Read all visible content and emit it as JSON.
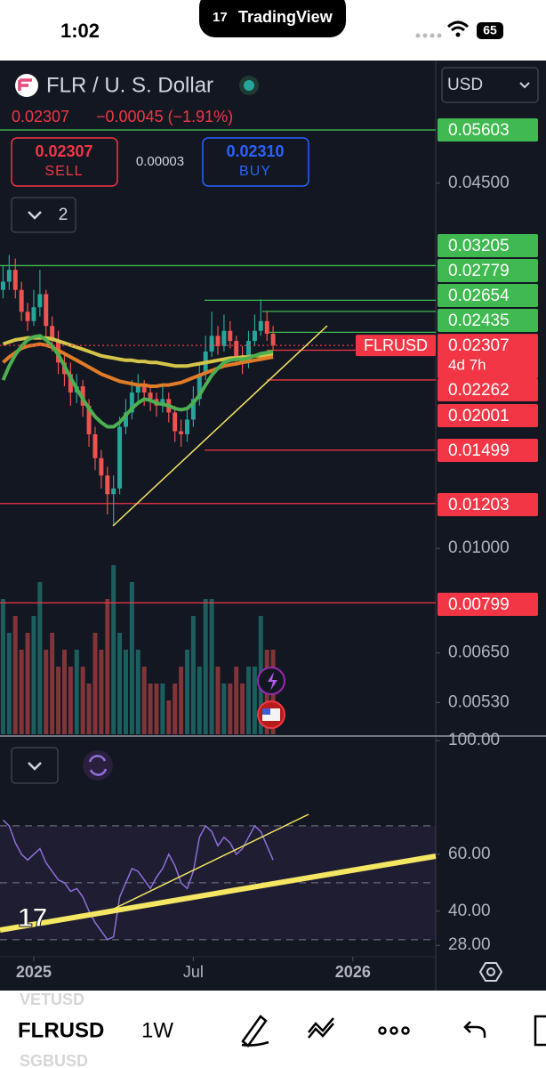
{
  "status_bar": {
    "time": "1:02",
    "app": "TradingView",
    "battery": "65"
  },
  "header": {
    "symbol": "FLR / U. S. Dollar",
    "currency": "USD",
    "quote": "0.02307",
    "change": "−0.00045 (−1.91%)",
    "sell_price": "0.02307",
    "sell_label": "SELL",
    "spread": "0.00003",
    "buy_price": "0.02310",
    "buy_label": "BUY",
    "indicator_count": "2"
  },
  "chart_data": [
    {
      "type": "candlestick",
      "log_scale": true,
      "up_color": "#26a69a",
      "down_color": "#ef5350",
      "xlim": [
        -0.5,
        70.5
      ],
      "xticks": [
        {
          "value": 5,
          "label": "2025"
        },
        {
          "value": 31,
          "label": "Jul"
        },
        {
          "value": 57,
          "label": "2026"
        }
      ],
      "ylim": [
        0.00465,
        0.0746
      ],
      "yticks": [
        {
          "value": 0.045,
          "label": "0.04500"
        },
        {
          "value": 0.01,
          "label": "0.01000"
        },
        {
          "value": 0.0065,
          "label": "0.00650"
        },
        {
          "value": 0.0053,
          "label": "0.00530"
        }
      ],
      "candles": [
        [
          0.029,
          0.032,
          0.028,
          0.03
        ],
        [
          0.03,
          0.0335,
          0.029,
          0.0315
        ],
        [
          0.0315,
          0.033,
          0.028,
          0.029
        ],
        [
          0.029,
          0.03,
          0.0255,
          0.0265
        ],
        [
          0.0265,
          0.0275,
          0.0245,
          0.0255
        ],
        [
          0.0255,
          0.029,
          0.025,
          0.027
        ],
        [
          0.027,
          0.0315,
          0.026,
          0.0285
        ],
        [
          0.0285,
          0.029,
          0.024,
          0.025
        ],
        [
          0.025,
          0.026,
          0.0225,
          0.0235
        ],
        [
          0.0235,
          0.0245,
          0.0205,
          0.0215
        ],
        [
          0.0215,
          0.0225,
          0.0195,
          0.0205
        ],
        [
          0.0205,
          0.0215,
          0.018,
          0.019
        ],
        [
          0.019,
          0.0205,
          0.0182,
          0.0195
        ],
        [
          0.0195,
          0.02,
          0.0172,
          0.018
        ],
        [
          0.018,
          0.0185,
          0.0152,
          0.016
        ],
        [
          0.016,
          0.0165,
          0.0138,
          0.0145
        ],
        [
          0.0145,
          0.015,
          0.0128,
          0.0135
        ],
        [
          0.0135,
          0.014,
          0.0115,
          0.0125
        ],
        [
          0.0125,
          0.0135,
          0.011,
          0.0128
        ],
        [
          0.0128,
          0.0172,
          0.0125,
          0.0165
        ],
        [
          0.0165,
          0.0185,
          0.016,
          0.0175
        ],
        [
          0.0175,
          0.02,
          0.017,
          0.019
        ],
        [
          0.019,
          0.0205,
          0.0182,
          0.0195
        ],
        [
          0.0195,
          0.02,
          0.018,
          0.019
        ],
        [
          0.019,
          0.0195,
          0.0176,
          0.0185
        ],
        [
          0.0185,
          0.019,
          0.0172,
          0.018
        ],
        [
          0.018,
          0.0195,
          0.0175,
          0.0185
        ],
        [
          0.0185,
          0.019,
          0.0168,
          0.0175
        ],
        [
          0.0175,
          0.018,
          0.0155,
          0.0162
        ],
        [
          0.0162,
          0.017,
          0.0152,
          0.016
        ],
        [
          0.016,
          0.0178,
          0.0155,
          0.017
        ],
        [
          0.017,
          0.0195,
          0.0165,
          0.0185
        ],
        [
          0.0185,
          0.0215,
          0.018,
          0.0205
        ],
        [
          0.0205,
          0.024,
          0.02,
          0.0225
        ],
        [
          0.0225,
          0.0265,
          0.022,
          0.024
        ],
        [
          0.024,
          0.025,
          0.0222,
          0.023
        ],
        [
          0.023,
          0.0262,
          0.0225,
          0.0245
        ],
        [
          0.0245,
          0.0255,
          0.0228,
          0.0235
        ],
        [
          0.0235,
          0.024,
          0.0212,
          0.022
        ],
        [
          0.022,
          0.023,
          0.0205,
          0.0215
        ],
        [
          0.0215,
          0.0245,
          0.021,
          0.0235
        ],
        [
          0.0235,
          0.0262,
          0.023,
          0.0245
        ],
        [
          0.0245,
          0.0279,
          0.024,
          0.0255
        ],
        [
          0.0255,
          0.0265,
          0.0235,
          0.0242
        ],
        [
          0.0242,
          0.025,
          0.0226,
          0.02307
        ]
      ],
      "volume": [
        8,
        6,
        7,
        5,
        6,
        7,
        9,
        5,
        6,
        4,
        5,
        4,
        5,
        4,
        3,
        6,
        5,
        8,
        10,
        6,
        5,
        9,
        5,
        4,
        3,
        3,
        3,
        2,
        3,
        4,
        5,
        7,
        4,
        8,
        8,
        4,
        3,
        3,
        4,
        3,
        4,
        4,
        7,
        5,
        5
      ],
      "overlays": [
        {
          "color": "#d4c44a",
          "values": [
            0.0232,
            0.0234,
            0.0236,
            0.0237,
            0.0238,
            0.0238,
            0.0238,
            0.0238,
            0.0237,
            0.0235,
            0.0233,
            0.0231,
            0.0229,
            0.0227,
            0.0225,
            0.0223,
            0.0221,
            0.022,
            0.0219,
            0.0218,
            0.0217,
            0.0217,
            0.0216,
            0.0216,
            0.0215,
            0.0215,
            0.0214,
            0.0213,
            0.0212,
            0.0212,
            0.0212,
            0.0213,
            0.0214,
            0.0215,
            0.0216,
            0.0217,
            0.0218,
            0.0219,
            0.0219,
            0.022,
            0.022,
            0.0221,
            0.0221,
            0.0222,
            0.0222
          ]
        },
        {
          "color": "#e07b28",
          "values": [
            0.0215,
            0.022,
            0.0224,
            0.0228,
            0.023,
            0.0231,
            0.0232,
            0.0231,
            0.0229,
            0.0226,
            0.0223,
            0.022,
            0.0217,
            0.0214,
            0.0211,
            0.0208,
            0.0205,
            0.0203,
            0.0201,
            0.0199,
            0.0198,
            0.0197,
            0.0196,
            0.0196,
            0.0195,
            0.0195,
            0.0196,
            0.0196,
            0.0197,
            0.0198,
            0.02,
            0.0202,
            0.0204,
            0.0206,
            0.0208,
            0.021,
            0.0212,
            0.0213,
            0.0214,
            0.0215,
            0.0216,
            0.0217,
            0.0218,
            0.0219,
            0.022
          ]
        },
        {
          "color": "#4caf50",
          "values": [
            0.02,
            0.0212,
            0.0222,
            0.023,
            0.0236,
            0.0239,
            0.024,
            0.0236,
            0.023,
            0.0222,
            0.0212,
            0.0202,
            0.0193,
            0.0185,
            0.0178,
            0.0172,
            0.0168,
            0.0165,
            0.0165,
            0.0168,
            0.0173,
            0.0178,
            0.0182,
            0.0185,
            0.0184,
            0.0182,
            0.0181,
            0.018,
            0.0178,
            0.0177,
            0.0178,
            0.0182,
            0.0188,
            0.0196,
            0.0204,
            0.021,
            0.0215,
            0.0217,
            0.0218,
            0.0218,
            0.0219,
            0.0221,
            0.0223,
            0.0224,
            0.0225
          ]
        }
      ],
      "levels": [
        {
          "value": 0.05603,
          "color": "#3fb950"
        },
        {
          "value": 0.03205,
          "color": "#3fb950"
        },
        {
          "value": 0.02779,
          "color": "#3fb950"
        },
        {
          "value": 0.02654,
          "color": "#3fb950"
        },
        {
          "value": 0.02435,
          "color": "#3fb950"
        },
        {
          "value": 0.02262,
          "color": "#f23645"
        },
        {
          "value": 0.02001,
          "color": "#f23645"
        },
        {
          "value": 0.01499,
          "color": "#f23645"
        },
        {
          "value": 0.01203,
          "color": "#f23645"
        },
        {
          "value": 0.00799,
          "color": "#f23645"
        }
      ],
      "last": {
        "value": 0.02307,
        "symbol": "FLRUSD",
        "countdown": "4d 7h",
        "color": "#f23645"
      }
    },
    {
      "type": "line",
      "color": "#8e6fd8",
      "xlim": [
        -0.5,
        70.5
      ],
      "ylim": [
        24,
        100
      ],
      "yticks": [
        {
          "value": 100,
          "label": "100.00"
        },
        {
          "value": 60,
          "label": "60.00"
        },
        {
          "value": 40,
          "label": "40.00"
        },
        {
          "value": 28,
          "label": "28.00"
        }
      ],
      "bands": [
        70,
        50,
        30
      ],
      "values": [
        72,
        70,
        64,
        60,
        58,
        60,
        62,
        57,
        54,
        51,
        50,
        47,
        48,
        45,
        40,
        36,
        33,
        30,
        31,
        45,
        50,
        55,
        54,
        51,
        48,
        52,
        55,
        60,
        56,
        50,
        48,
        54,
        66,
        70,
        68,
        63,
        66,
        64,
        60,
        62,
        66,
        70,
        68,
        63,
        58
      ]
    }
  ],
  "toolbar": {
    "symbol": "FLRUSD",
    "interval": "1W",
    "watchlist": [
      "VETUSD",
      "SGBUSD"
    ]
  }
}
